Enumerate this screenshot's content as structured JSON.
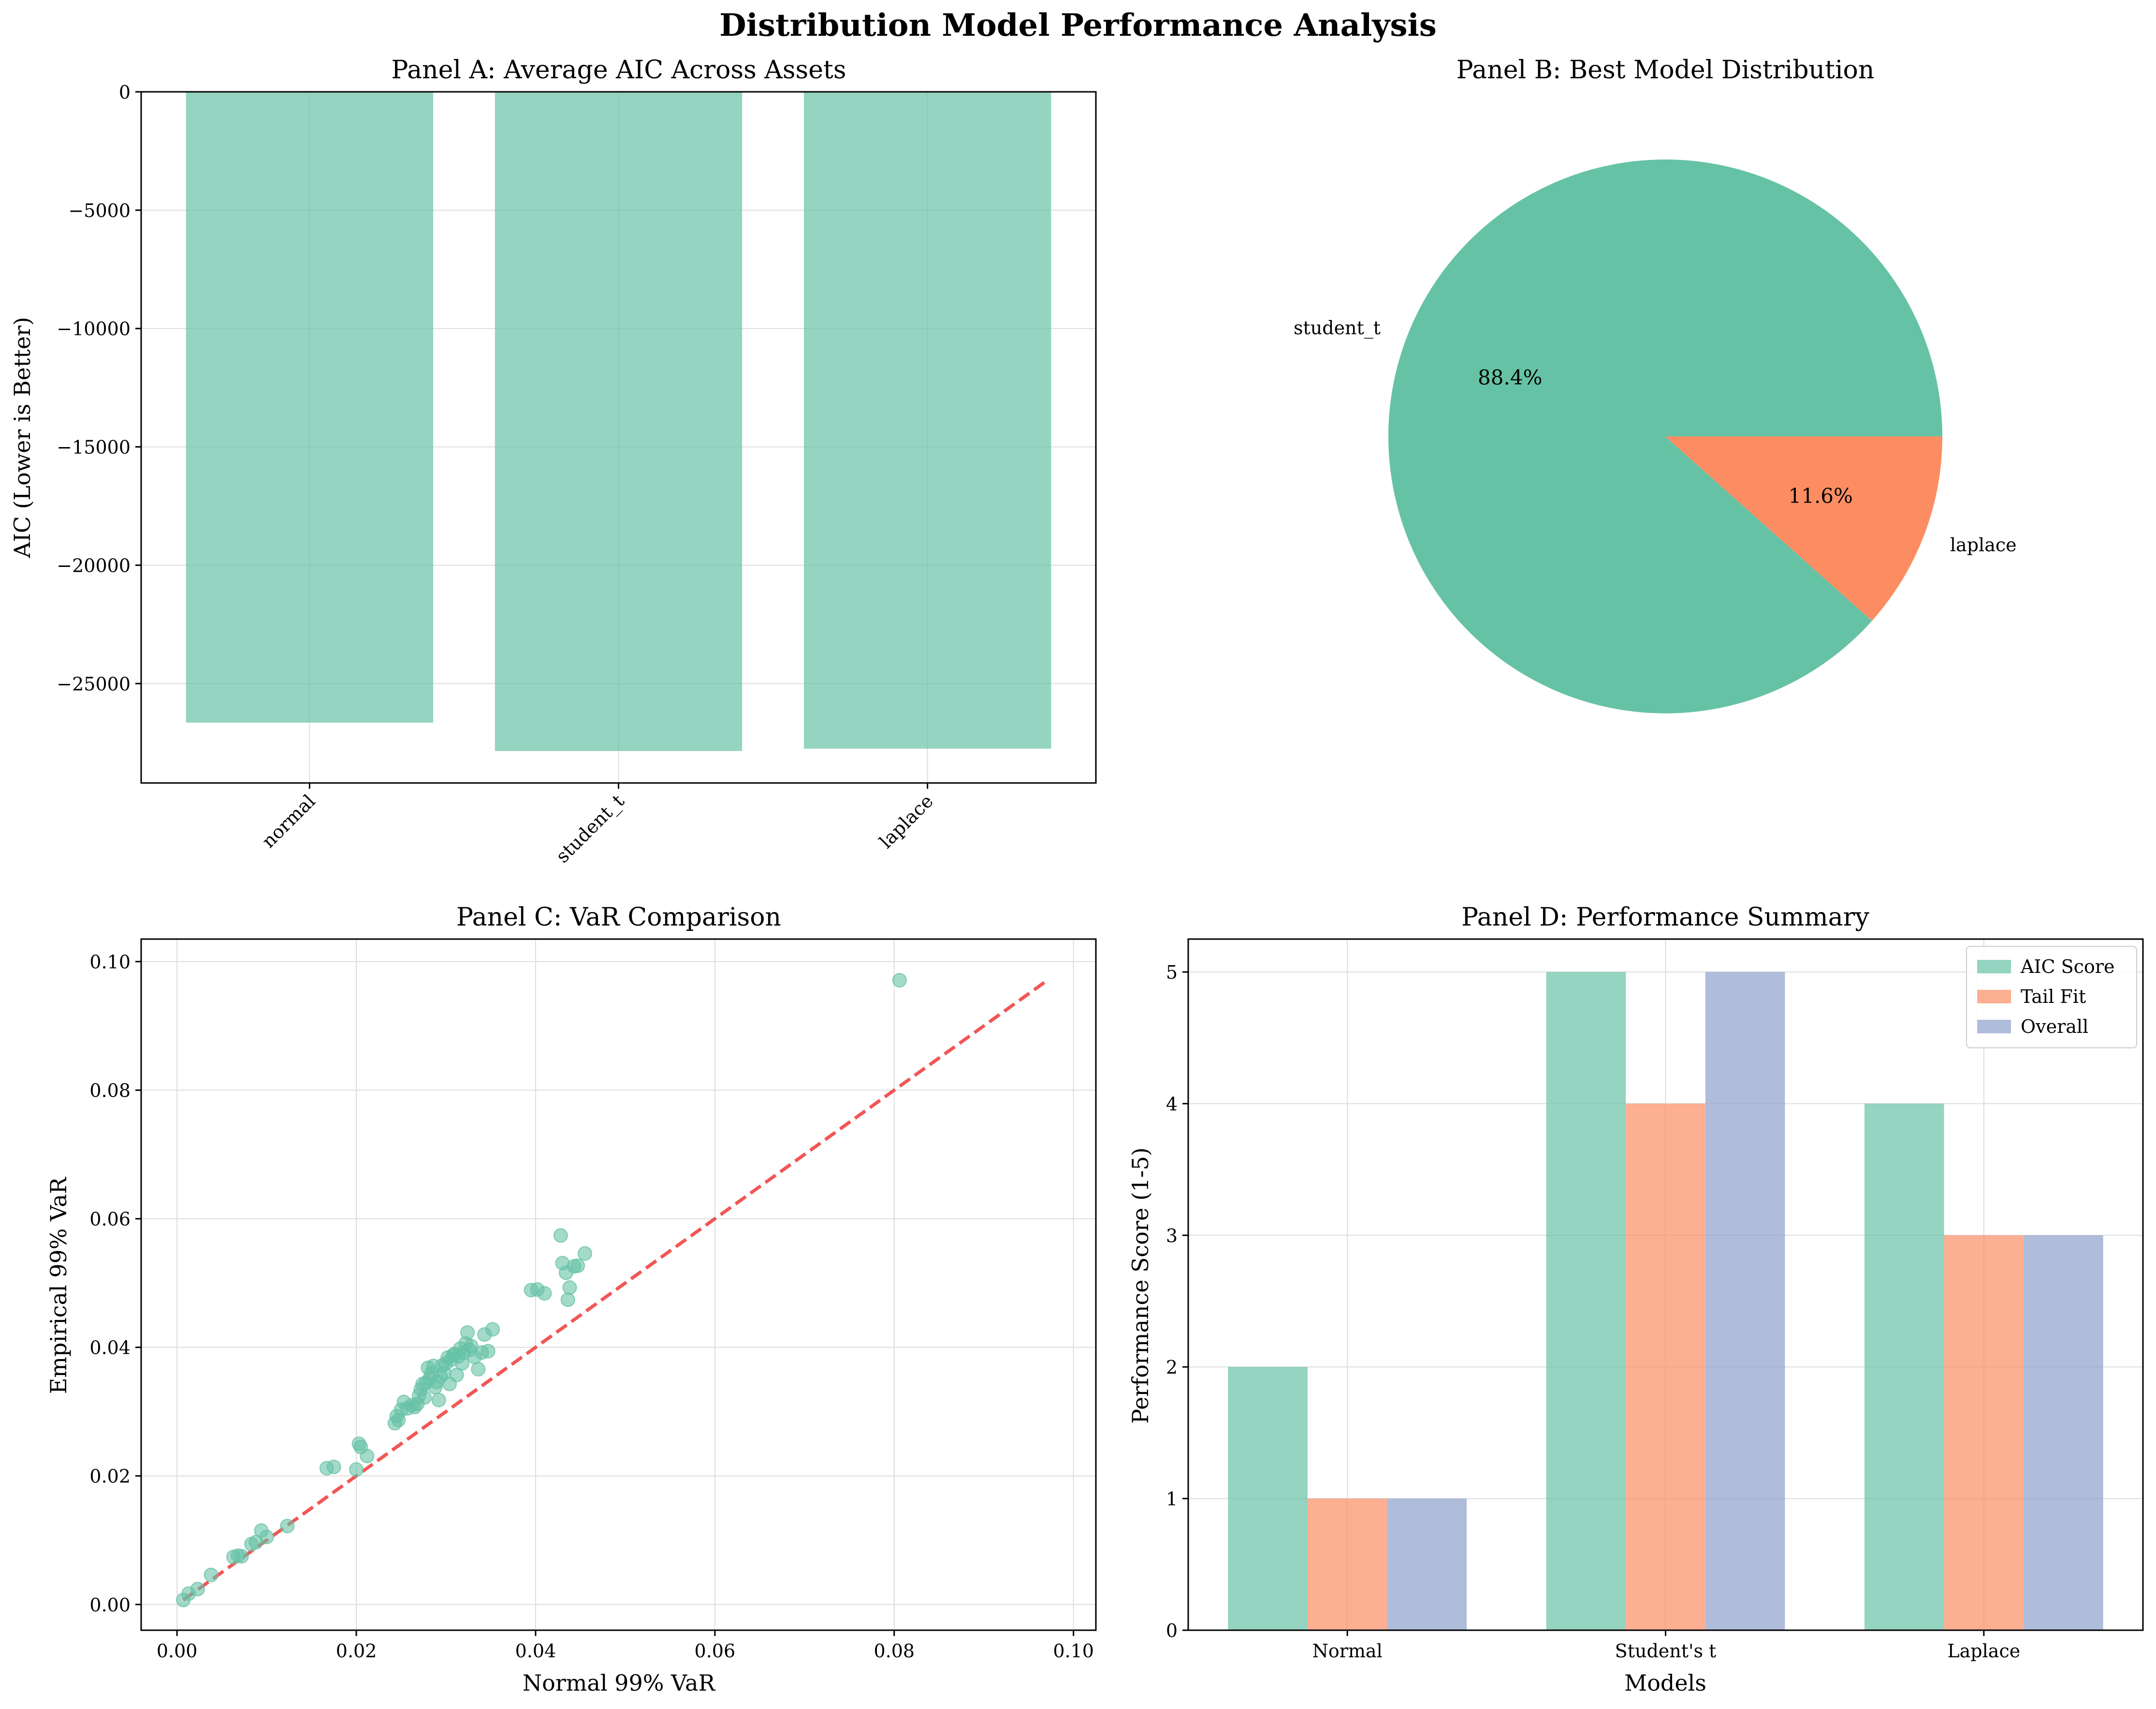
{
  "title": "Distribution Model Performance Analysis",
  "colors": {
    "green": "#66c2a5",
    "orange": "#fc8d62",
    "blue": "#8da0cb",
    "refline": "#ef4444",
    "grid": "#dddddd"
  },
  "chart_data": [
    {
      "id": "A",
      "type": "bar",
      "title": "Panel A: Average AIC Across Assets",
      "xlabel": "",
      "ylabel": "AIC (Lower is Better)",
      "categories": [
        "normal",
        "student_t",
        "laplace"
      ],
      "values": [
        -26650,
        -27850,
        -27750
      ],
      "ylim": [
        -29200,
        0
      ],
      "yticks": [
        0,
        -5000,
        -10000,
        -15000,
        -20000,
        -25000
      ],
      "ytick_labels": [
        "0",
        "−5000",
        "−10000",
        "−15000",
        "−20000",
        "−25000"
      ],
      "grid": true
    },
    {
      "id": "B",
      "type": "pie",
      "title": "Panel B: Best Model Distribution",
      "labels": [
        "student_t",
        "laplace"
      ],
      "values": [
        88.4,
        11.6
      ],
      "pct_labels": [
        "88.4%",
        "11.6%"
      ]
    },
    {
      "id": "C",
      "type": "scatter",
      "title": "Panel C: VaR Comparison",
      "xlabel": "Normal 99% VaR",
      "ylabel": "Empirical 99% VaR",
      "xlim": [
        -0.004,
        0.1025
      ],
      "ylim": [
        -0.004,
        0.1035
      ],
      "xticks": [
        0.0,
        0.02,
        0.04,
        0.06,
        0.08,
        0.1
      ],
      "xtick_labels": [
        "0.00",
        "0.02",
        "0.04",
        "0.06",
        "0.08",
        "0.10"
      ],
      "yticks": [
        0.0,
        0.02,
        0.04,
        0.06,
        0.08,
        0.1
      ],
      "ytick_labels": [
        "0.00",
        "0.02",
        "0.04",
        "0.06",
        "0.08",
        "0.10"
      ],
      "reference_line": {
        "from": [
          0.0007,
          0.0007
        ],
        "to": [
          0.097,
          0.097
        ],
        "style": "dashed"
      },
      "points": [
        [
          0.0007,
          0.0007
        ],
        [
          0.0013,
          0.0017
        ],
        [
          0.0023,
          0.0024
        ],
        [
          0.0038,
          0.0046
        ],
        [
          0.0063,
          0.0074
        ],
        [
          0.0068,
          0.0076
        ],
        [
          0.0072,
          0.0075
        ],
        [
          0.0083,
          0.0094
        ],
        [
          0.0088,
          0.0097
        ],
        [
          0.0094,
          0.0115
        ],
        [
          0.01,
          0.0105
        ],
        [
          0.0123,
          0.0122
        ],
        [
          0.0167,
          0.0212
        ],
        [
          0.0175,
          0.0214
        ],
        [
          0.02,
          0.021
        ],
        [
          0.0203,
          0.025
        ],
        [
          0.0205,
          0.0245
        ],
        [
          0.0212,
          0.0231
        ],
        [
          0.0243,
          0.0282
        ],
        [
          0.0245,
          0.0293
        ],
        [
          0.0247,
          0.0287
        ],
        [
          0.025,
          0.0303
        ],
        [
          0.0253,
          0.0315
        ],
        [
          0.0257,
          0.0305
        ],
        [
          0.0262,
          0.031
        ],
        [
          0.0265,
          0.0307
        ],
        [
          0.0268,
          0.0312
        ],
        [
          0.027,
          0.0325
        ],
        [
          0.0272,
          0.0335
        ],
        [
          0.0274,
          0.0343
        ],
        [
          0.0276,
          0.0322
        ],
        [
          0.0278,
          0.0345
        ],
        [
          0.028,
          0.0368
        ],
        [
          0.0282,
          0.0352
        ],
        [
          0.0284,
          0.036
        ],
        [
          0.0286,
          0.0371
        ],
        [
          0.0288,
          0.0338
        ],
        [
          0.029,
          0.0346
        ],
        [
          0.0292,
          0.0318
        ],
        [
          0.0294,
          0.0355
        ],
        [
          0.0296,
          0.0372
        ],
        [
          0.0298,
          0.036
        ],
        [
          0.03,
          0.0375
        ],
        [
          0.0302,
          0.0384
        ],
        [
          0.0304,
          0.0343
        ],
        [
          0.0306,
          0.0381
        ],
        [
          0.0308,
          0.0388
        ],
        [
          0.031,
          0.039
        ],
        [
          0.0312,
          0.0357
        ],
        [
          0.0314,
          0.0386
        ],
        [
          0.0316,
          0.0398
        ],
        [
          0.0318,
          0.0375
        ],
        [
          0.032,
          0.0392
        ],
        [
          0.0322,
          0.0406
        ],
        [
          0.0324,
          0.0423
        ],
        [
          0.0326,
          0.0396
        ],
        [
          0.0328,
          0.0402
        ],
        [
          0.0332,
          0.0385
        ],
        [
          0.0336,
          0.0366
        ],
        [
          0.034,
          0.0392
        ],
        [
          0.0343,
          0.042
        ],
        [
          0.0347,
          0.0394
        ],
        [
          0.0352,
          0.0428
        ],
        [
          0.0395,
          0.0489
        ],
        [
          0.0402,
          0.049
        ],
        [
          0.041,
          0.0484
        ],
        [
          0.0428,
          0.0574
        ],
        [
          0.043,
          0.0531
        ],
        [
          0.0434,
          0.0516
        ],
        [
          0.0436,
          0.0474
        ],
        [
          0.0438,
          0.0493
        ],
        [
          0.0443,
          0.0526
        ],
        [
          0.0447,
          0.0527
        ],
        [
          0.0455,
          0.0546
        ],
        [
          0.0806,
          0.0971
        ]
      ],
      "grid": true
    },
    {
      "id": "D",
      "type": "bar",
      "title": "Panel D: Performance Summary",
      "xlabel": "Models",
      "ylabel": "Performance Score (1-5)",
      "categories": [
        "Normal",
        "Student's t",
        "Laplace"
      ],
      "series": [
        {
          "name": "AIC Score",
          "values": [
            2,
            5,
            4
          ]
        },
        {
          "name": "Tail Fit",
          "values": [
            1,
            4,
            3
          ]
        },
        {
          "name": "Overall",
          "values": [
            1,
            5,
            3
          ]
        }
      ],
      "ylim": [
        0,
        5.25
      ],
      "yticks": [
        0,
        1,
        2,
        3,
        4,
        5
      ],
      "ytick_labels": [
        "0",
        "1",
        "2",
        "3",
        "4",
        "5"
      ],
      "legend": "top-right",
      "grid": true
    }
  ]
}
